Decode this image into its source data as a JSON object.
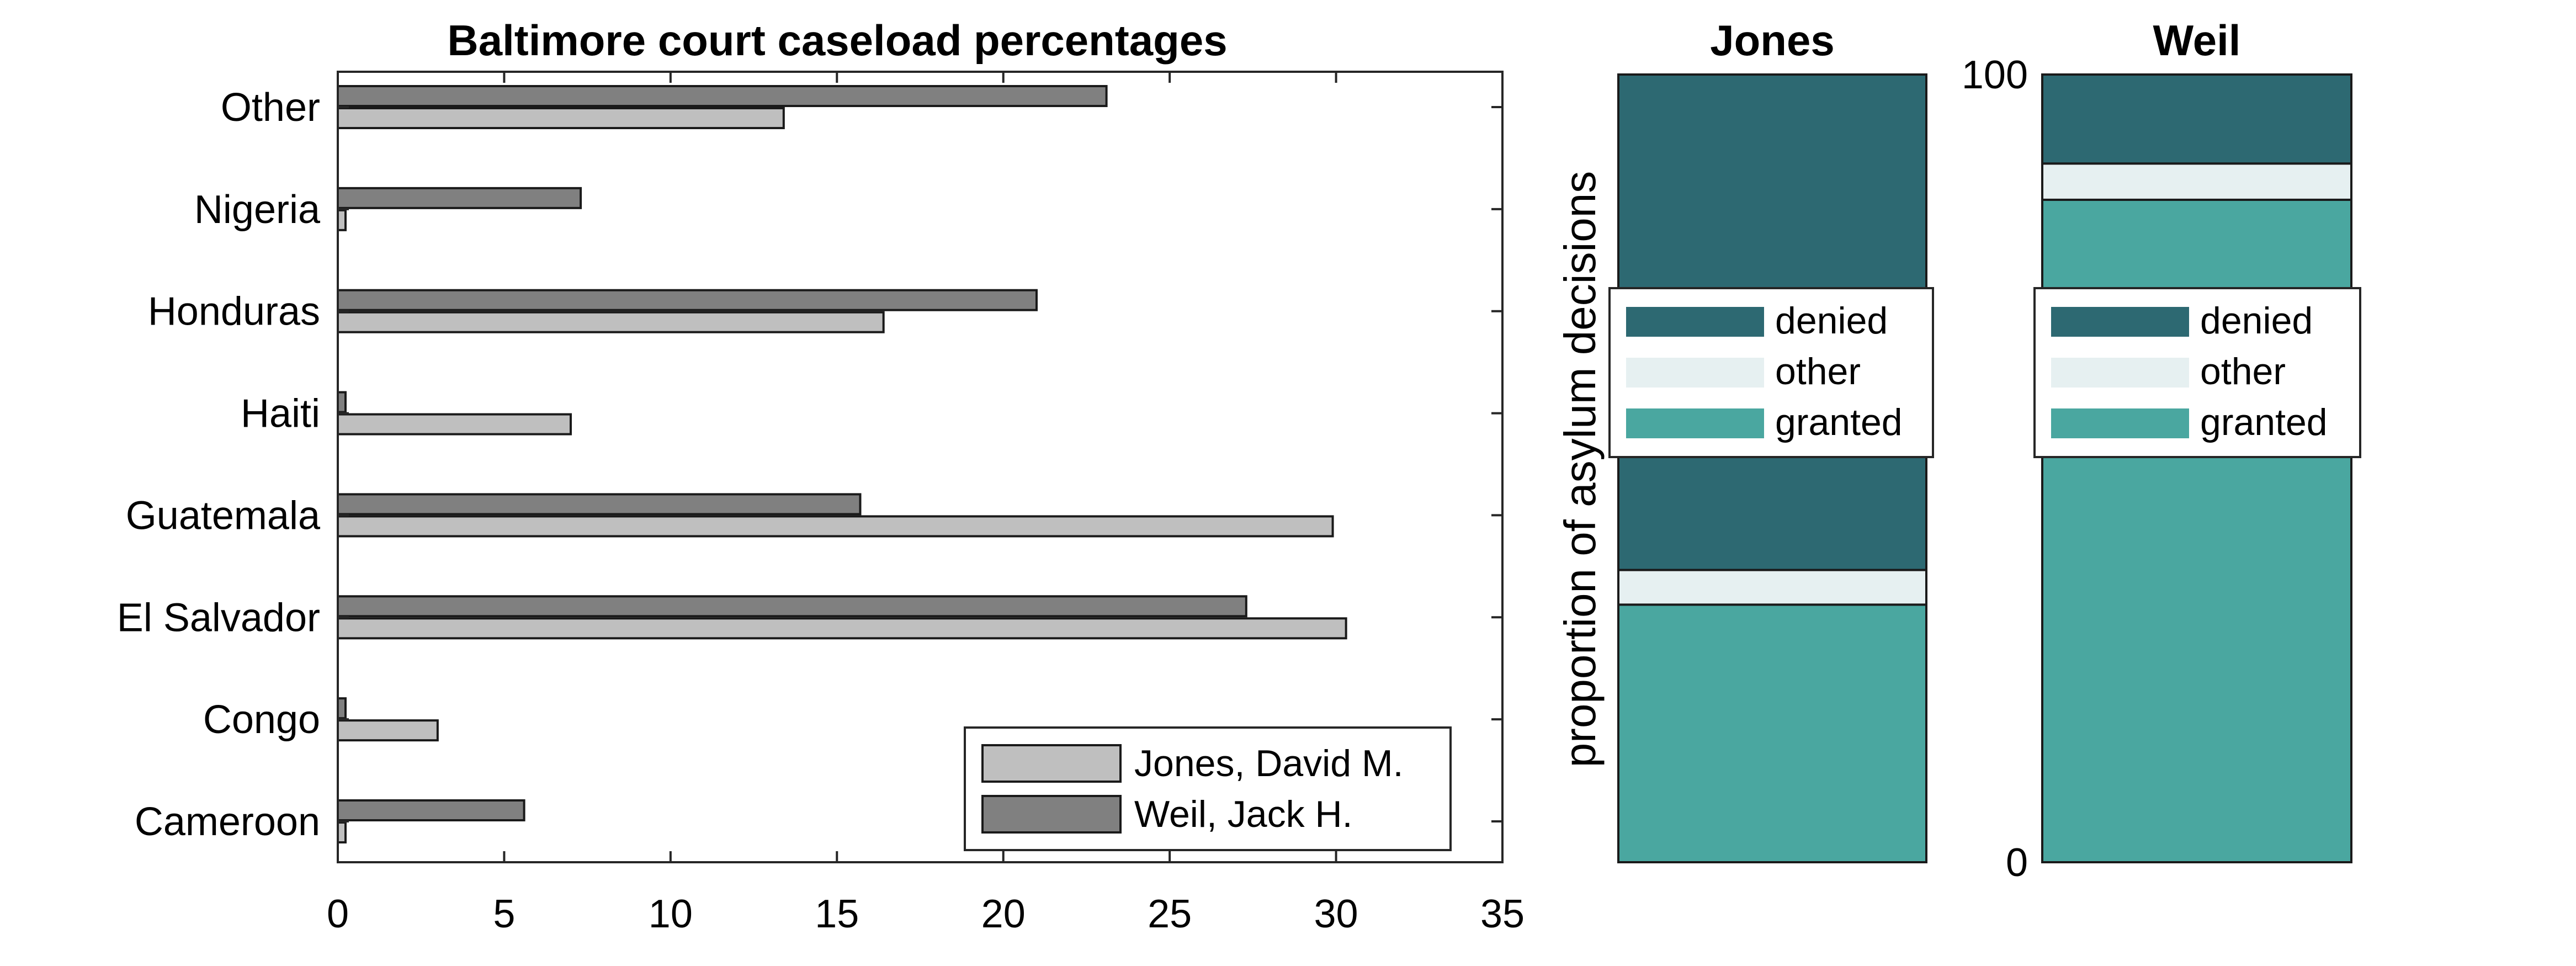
{
  "chart_data": [
    {
      "type": "bar",
      "orientation": "horizontal",
      "title": "Baltimore court caseload percentages",
      "xlabel": "",
      "ylabel": "",
      "categories": [
        "Cameroon",
        "Congo",
        "El Salvador",
        "Guatemala",
        "Haiti",
        "Honduras",
        "Nigeria",
        "Other"
      ],
      "series": [
        {
          "name": "Jones, David M.",
          "color": "#bfbfbf",
          "values": [
            0,
            3.0,
            30.3,
            29.9,
            7.0,
            16.4,
            0,
            13.4
          ]
        },
        {
          "name": "Weil, Jack H.",
          "color": "#808080",
          "values": [
            5.6,
            0,
            27.3,
            15.7,
            0,
            21.0,
            7.3,
            23.1
          ]
        }
      ],
      "xlim": [
        0,
        35
      ],
      "xticks": [
        "0",
        "5",
        "10",
        "15",
        "20",
        "25",
        "30",
        "35"
      ],
      "grid": false,
      "legend_position": "bottom-right"
    },
    {
      "type": "bar",
      "stacked": true,
      "title": "Jones",
      "ylabel": "proportion of asylum decisions",
      "ylim": [
        0,
        100
      ],
      "series": [
        {
          "name": "granted",
          "color": "#4aa7a0",
          "value": 32.7
        },
        {
          "name": "other",
          "color": "#e6f0f1",
          "value": 4.4
        },
        {
          "name": "denied",
          "color": "#2d6972",
          "value": 62.9
        }
      ],
      "legend_order": [
        "denied",
        "other",
        "granted"
      ],
      "legend_position": "middle"
    },
    {
      "type": "bar",
      "stacked": true,
      "title": "Weil",
      "ylabel": "",
      "ylim": [
        0,
        100
      ],
      "yticks": [
        "0",
        "100"
      ],
      "series": [
        {
          "name": "granted",
          "color": "#4aa7a0",
          "value": 84.1
        },
        {
          "name": "other",
          "color": "#e6f0f1",
          "value": 4.6
        },
        {
          "name": "denied",
          "color": "#2d6972",
          "value": 11.3
        }
      ],
      "legend_order": [
        "denied",
        "other",
        "granted"
      ],
      "legend_position": "upper-middle"
    }
  ]
}
